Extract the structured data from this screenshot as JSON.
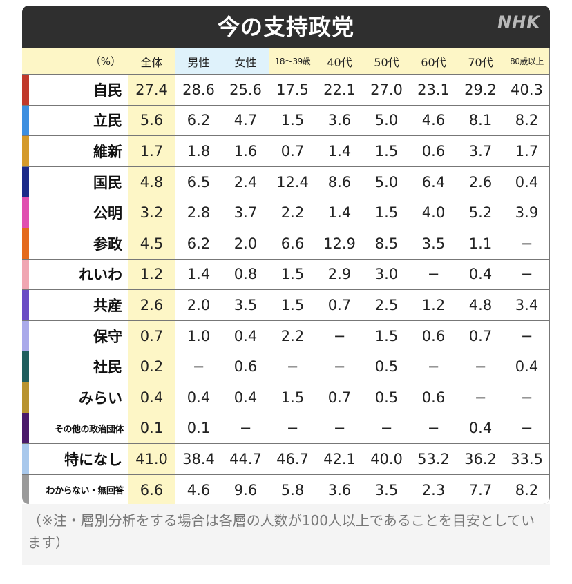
{
  "title": "今の支持政党",
  "logo": "NHK",
  "colors": {
    "header_bg": "#2f2f2f",
    "total_bg": "#fdf6c6",
    "female_bg": "#dff2fb"
  },
  "chart_data": {
    "type": "table",
    "title": "今の支持政党",
    "unit_label": "（%）",
    "columns": [
      {
        "label": "全体",
        "bg": "#fdf6c6"
      },
      {
        "label": "男性",
        "bg": "#dff2fb"
      },
      {
        "label": "女性",
        "bg": "#dff2fb"
      },
      {
        "label": "18〜39歳",
        "bg": "#fdf6c6"
      },
      {
        "label": "40代",
        "bg": "#fdf6c6"
      },
      {
        "label": "50代",
        "bg": "#fdf6c6"
      },
      {
        "label": "60代",
        "bg": "#fdf6c6"
      },
      {
        "label": "70代",
        "bg": "#fdf6c6"
      },
      {
        "label": "80歳以上",
        "bg": "#fdf6c6"
      }
    ],
    "rows": [
      {
        "party": "自民",
        "color": "#c0392b",
        "values": [
          "27.4",
          "28.6",
          "25.6",
          "17.5",
          "22.1",
          "27.0",
          "23.1",
          "29.2",
          "40.3"
        ]
      },
      {
        "party": "立民",
        "color": "#3d8fe0",
        "values": [
          "5.6",
          "6.2",
          "4.7",
          "1.5",
          "3.6",
          "5.0",
          "4.6",
          "8.1",
          "8.2"
        ]
      },
      {
        "party": "維新",
        "color": "#d49a2a",
        "values": [
          "1.7",
          "1.8",
          "1.6",
          "0.7",
          "1.4",
          "1.5",
          "0.6",
          "3.7",
          "1.7"
        ]
      },
      {
        "party": "国民",
        "color": "#1b2a8a",
        "values": [
          "4.8",
          "6.5",
          "2.4",
          "12.4",
          "8.6",
          "5.0",
          "6.4",
          "2.6",
          "0.4"
        ]
      },
      {
        "party": "公明",
        "color": "#e04fb0",
        "values": [
          "3.2",
          "2.8",
          "3.7",
          "2.2",
          "1.4",
          "1.5",
          "4.0",
          "5.2",
          "3.9"
        ]
      },
      {
        "party": "参政",
        "color": "#e46a1c",
        "values": [
          "4.5",
          "6.2",
          "2.0",
          "6.6",
          "12.9",
          "8.5",
          "3.5",
          "1.1",
          "−"
        ]
      },
      {
        "party": "れいわ",
        "color": "#f0a6b2",
        "values": [
          "1.2",
          "1.4",
          "0.8",
          "1.5",
          "2.9",
          "3.0",
          "−",
          "0.4",
          "−"
        ]
      },
      {
        "party": "共産",
        "color": "#6a4cc4",
        "values": [
          "2.6",
          "2.0",
          "3.5",
          "1.5",
          "0.7",
          "2.5",
          "1.2",
          "4.8",
          "3.4"
        ]
      },
      {
        "party": "保守",
        "color": "#a9a9ea",
        "values": [
          "0.7",
          "1.0",
          "0.4",
          "2.2",
          "−",
          "1.5",
          "0.6",
          "0.7",
          "−"
        ]
      },
      {
        "party": "社民",
        "color": "#1f5e5e",
        "values": [
          "0.2",
          "−",
          "0.6",
          "−",
          "−",
          "0.5",
          "−",
          "−",
          "0.4"
        ]
      },
      {
        "party": "みらい",
        "color": "#b8932f",
        "values": [
          "0.4",
          "0.4",
          "0.4",
          "1.5",
          "0.7",
          "0.5",
          "0.6",
          "−",
          "−"
        ]
      },
      {
        "party": "その他の政治団体",
        "color": "#4a1a6a",
        "values": [
          "0.1",
          "0.1",
          "−",
          "−",
          "−",
          "−",
          "−",
          "0.4",
          "−"
        ]
      },
      {
        "party": "特になし",
        "color": "#a8c8ec",
        "values": [
          "41.0",
          "38.4",
          "44.7",
          "46.7",
          "42.1",
          "40.0",
          "53.2",
          "36.2",
          "33.5"
        ]
      },
      {
        "party": "わからない・無回答",
        "color": "#9a9a9a",
        "values": [
          "6.6",
          "4.6",
          "9.6",
          "5.8",
          "3.6",
          "3.5",
          "2.3",
          "7.7",
          "8.2"
        ]
      }
    ]
  },
  "note": "（※注・層別分析をする場合は各層の人数が100人以上であることを目安としています）"
}
